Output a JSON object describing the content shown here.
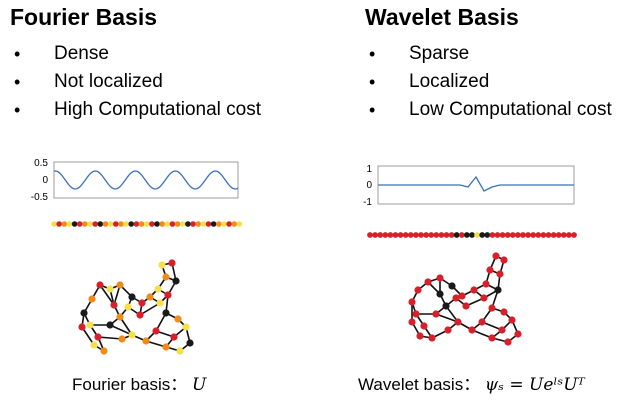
{
  "left": {
    "title": "Fourier Basis",
    "bullets": [
      "Dense",
      "Not localized",
      "High Computational cost"
    ],
    "plot": {
      "y_ticks": [
        "0.5",
        "0",
        "-0.5"
      ]
    },
    "caption_text": "Fourier basis：",
    "caption_math": "U"
  },
  "right": {
    "title": "Wavelet Basis",
    "bullets": [
      "Sparse",
      "Localized",
      "Low Computational cost"
    ],
    "plot": {
      "y_ticks": [
        "1",
        "0",
        "-1"
      ]
    },
    "caption_text": "Wavelet basis：",
    "caption_math": "ψₛ = UeˡˢUᵀ"
  },
  "colors": {
    "line": "#3a6fc4",
    "node_dark": "#1a1a1a",
    "node_red": "#d8202a",
    "node_orange": "#f08a18",
    "node_yellow": "#f5e04a"
  }
}
